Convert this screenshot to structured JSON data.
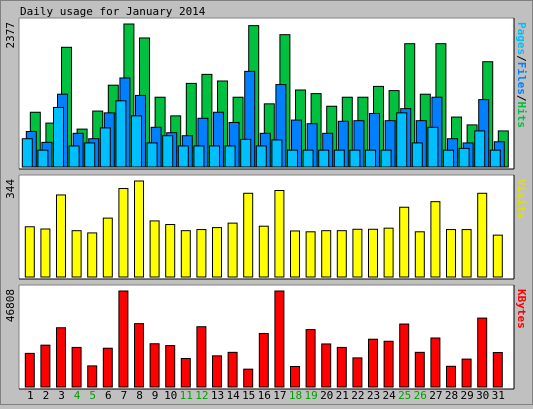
{
  "chart_data": {
    "type": "bar",
    "title": "Daily usage for January 2014",
    "categories": [
      "1",
      "2",
      "3",
      "4",
      "5",
      "6",
      "7",
      "8",
      "9",
      "10",
      "11",
      "12",
      "13",
      "14",
      "15",
      "16",
      "17",
      "18",
      "19",
      "20",
      "21",
      "22",
      "23",
      "24",
      "25",
      "26",
      "27",
      "28",
      "29",
      "30",
      "31"
    ],
    "weekend_days": [
      "4",
      "5",
      "11",
      "12",
      "18",
      "19",
      "25",
      "26"
    ],
    "panels": [
      {
        "label": "Pages/Files/Hits",
        "legend": [
          {
            "text": "Pages",
            "color": "#00bfff"
          },
          {
            "text": "/",
            "color": "#000000"
          },
          {
            "text": "Files",
            "color": "#0080ff"
          },
          {
            "text": "/",
            "color": "#000000"
          },
          {
            "text": "Hits",
            "color": "#00c040"
          }
        ],
        "max_label": "2377",
        "max": 2377,
        "series": [
          {
            "name": "Hits",
            "color": "#00c040",
            "values": [
              910,
              730,
              1990,
              630,
              930,
              1360,
              2377,
              2145,
              1160,
              850,
              1390,
              1540,
              1430,
              1160,
              2350,
              1050,
              2200,
              1280,
              1220,
              1010,
              1160,
              1160,
              1340,
              1270,
              2050,
              1210,
              2050,
              830,
              700,
              1750,
              600
            ]
          },
          {
            "name": "Files",
            "color": "#0080ff",
            "values": [
              590,
              410,
              1210,
              560,
              470,
              900,
              1480,
              1190,
              660,
              570,
              520,
              810,
              910,
              740,
              1590,
              560,
              1370,
              780,
              720,
              560,
              760,
              770,
              890,
              770,
              970,
              770,
              1160,
              470,
              400,
              1120,
              420
            ]
          },
          {
            "name": "Pages",
            "color": "#00bfff",
            "values": [
              470,
              280,
              990,
              350,
              400,
              650,
              1100,
              850,
              400,
              520,
              350,
              350,
              350,
              350,
              460,
              350,
              450,
              280,
              280,
              280,
              280,
              280,
              280,
              280,
              900,
              400,
              660,
              280,
              310,
              600,
              280
            ]
          }
        ]
      },
      {
        "label": "Visits",
        "legend": [
          {
            "text": "Visits",
            "color": "#e0e000"
          }
        ],
        "max_label": "344",
        "max": 344,
        "series": [
          {
            "name": "Visits",
            "color": "#ffff00",
            "values": [
              180,
              172,
              294,
              166,
              158,
              211,
              317,
              344,
              201,
              188,
              166,
              170,
              177,
              193,
              300,
              182,
              310,
              165,
              162,
              166,
              166,
              171,
              171,
              175,
              250,
              162,
              270,
              170,
              170,
              300,
              150
            ]
          }
        ]
      },
      {
        "label": "KBytes",
        "legend": [
          {
            "text": "KBytes",
            "color": "#ff0000"
          }
        ],
        "max_label": "46808",
        "max": 46808,
        "series": [
          {
            "name": "KBytes",
            "color": "#ff0000",
            "values": [
              16400,
              20400,
              28900,
              19300,
              10300,
              18900,
              46808,
              30900,
              21100,
              20200,
              13900,
              29400,
              15200,
              16900,
              8700,
              26100,
              46808,
              10000,
              28000,
              21000,
              19300,
              14200,
              23300,
              22300,
              30700,
              16900,
              23900,
              10100,
              13600,
              33600,
              16800
            ]
          }
        ]
      }
    ]
  }
}
